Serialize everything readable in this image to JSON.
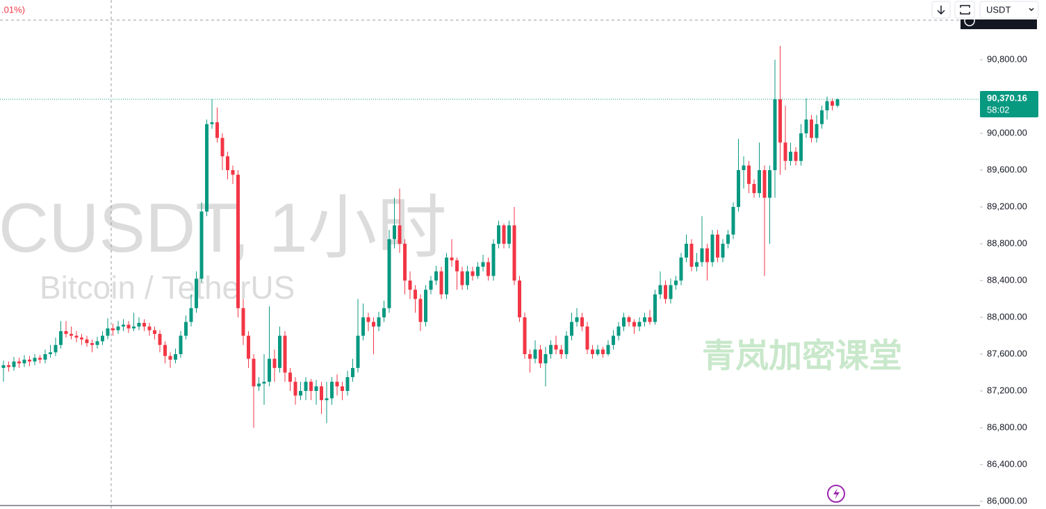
{
  "header_change": ".01%)",
  "toolbar": {
    "currency": "USDT"
  },
  "watermark": {
    "symbol": "CUSDT, 1小时",
    "name": "Bitcoin / TetherUS",
    "brand": "青岚加密课堂"
  },
  "chart_data": {
    "type": "candlestick",
    "up_color": "#089981",
    "down_color": "#f23645",
    "ylim": [
      85917,
      91449
    ],
    "yticks": [
      {
        "value": 86000,
        "label": "86,000.00"
      },
      {
        "value": 86400,
        "label": "86,400.00"
      },
      {
        "value": 86800,
        "label": "86,800.00"
      },
      {
        "value": 87200,
        "label": "87,200.00"
      },
      {
        "value": 87600,
        "label": "87,600.00"
      },
      {
        "value": 88000,
        "label": "88,000.00"
      },
      {
        "value": 88400,
        "label": "88,400.00"
      },
      {
        "value": 88800,
        "label": "88,800.00"
      },
      {
        "value": 89200,
        "label": "89,200.00"
      },
      {
        "value": 89600,
        "label": "89,600.00"
      },
      {
        "value": 90000,
        "label": "90,000.00"
      },
      {
        "value": 90800,
        "label": "90,800.00"
      }
    ],
    "last_price_label": "90,370.16",
    "countdown": "58:02",
    "open": [
      87450,
      87480,
      87460,
      87520,
      87500,
      87540,
      87520,
      87560,
      87540,
      87600,
      87620,
      87700,
      87850,
      87820,
      87800,
      87780,
      87760,
      87720,
      87700,
      87740,
      87800,
      87880,
      87860,
      87900,
      87920,
      87880,
      87900,
      87940,
      87900,
      87860,
      87820,
      87700,
      87580,
      87540,
      87600,
      87800,
      87950,
      88100,
      88420,
      89150,
      90100,
      90120,
      89950,
      89750,
      89600,
      89550,
      88100,
      87800,
      87550,
      87250,
      87280,
      87300,
      87550,
      87450,
      87800,
      87400,
      87300,
      87150,
      87200,
      87300,
      87200,
      87250,
      87100,
      87120,
      87300,
      87250,
      87200,
      87350,
      87450,
      87800,
      88000,
      87950,
      87900,
      88000,
      88100,
      88850,
      89000,
      88800,
      88400,
      88300,
      88200,
      87950,
      88300,
      88400,
      88500,
      88250,
      88650,
      88620,
      88500,
      88350,
      88500,
      88450,
      88550,
      88600,
      88450,
      88800,
      89000,
      88800,
      89000,
      88400,
      88000,
      87600,
      87550,
      87650,
      87500,
      87600,
      87700,
      87650,
      87600,
      87800,
      87950,
      88000,
      87900,
      87650,
      87600,
      87650,
      87600,
      87700,
      87800,
      87900,
      88000,
      87950,
      87900,
      87950,
      88000,
      87950,
      88250,
      88350,
      88200,
      88350,
      88400,
      88650,
      88800,
      88550,
      88600,
      88750,
      88600,
      88900,
      88650,
      88800,
      88900,
      89200,
      89600,
      89650,
      89450,
      89350,
      89600,
      89300,
      89600,
      90370,
      89900,
      89700,
      89800,
      89700,
      90000,
      90150,
      89950,
      90100,
      90250,
      90350,
      90300
    ],
    "high": [
      87530,
      87520,
      87570,
      87560,
      87590,
      87580,
      87600,
      87590,
      87650,
      87700,
      87780,
      87960,
      87960,
      87900,
      87850,
      87820,
      87800,
      87760,
      87790,
      87850,
      87990,
      87930,
      87960,
      87980,
      87960,
      88050,
      88000,
      87980,
      87940,
      87900,
      87860,
      87740,
      87620,
      87660,
      87850,
      88020,
      88250,
      88500,
      89250,
      90150,
      90370,
      90280,
      90000,
      89800,
      89650,
      89600,
      88200,
      87850,
      87600,
      87350,
      87600,
      88120,
      87650,
      87900,
      87850,
      87450,
      87350,
      87300,
      87350,
      87330,
      87320,
      87300,
      87300,
      87350,
      87380,
      87300,
      87420,
      87550,
      88200,
      88150,
      88050,
      88000,
      88060,
      88180,
      88950,
      89300,
      89400,
      88850,
      88500,
      88350,
      88250,
      88350,
      88450,
      88560,
      88550,
      88700,
      88850,
      88650,
      88550,
      88560,
      88550,
      88600,
      88680,
      88650,
      88850,
      89050,
      89020,
      89050,
      89200,
      88450,
      88050,
      87650,
      87750,
      87700,
      87680,
      87750,
      87800,
      87700,
      87850,
      88050,
      88100,
      88050,
      87950,
      87700,
      87700,
      87680,
      87750,
      87860,
      87950,
      88050,
      88020,
      87980,
      88000,
      88050,
      88080,
      88300,
      88500,
      88400,
      88420,
      88450,
      88700,
      88900,
      88850,
      88700,
      89100,
      88800,
      88950,
      88950,
      88850,
      88950,
      89250,
      89940,
      89750,
      89700,
      89500,
      89900,
      89650,
      89650,
      90800,
      90950,
      90300,
      89900,
      89850,
      90100,
      90380,
      90200,
      90200,
      90300,
      90400,
      90380,
      90380
    ],
    "low": [
      87300,
      87410,
      87420,
      87450,
      87460,
      87470,
      87480,
      87500,
      87500,
      87560,
      87580,
      87660,
      87780,
      87760,
      87730,
      87700,
      87680,
      87620,
      87660,
      87700,
      87760,
      87800,
      87820,
      87850,
      87830,
      87850,
      87860,
      87850,
      87800,
      87760,
      87620,
      87500,
      87450,
      87500,
      87560,
      87760,
      87900,
      88050,
      88380,
      89100,
      90050,
      89900,
      89600,
      89500,
      89450,
      88000,
      87700,
      87450,
      86800,
      87200,
      87050,
      87250,
      87300,
      87400,
      87300,
      87200,
      87050,
      87100,
      87100,
      87100,
      87050,
      86950,
      86850,
      87050,
      87150,
      87100,
      87150,
      87300,
      87400,
      87750,
      87850,
      87600,
      87850,
      87950,
      88050,
      88750,
      88700,
      88250,
      88200,
      88050,
      87850,
      87900,
      88250,
      88350,
      88200,
      88200,
      88550,
      88300,
      88300,
      88300,
      88400,
      88420,
      88500,
      88400,
      88400,
      88750,
      88750,
      88750,
      88350,
      87950,
      87550,
      87400,
      87500,
      87450,
      87250,
      87550,
      87600,
      87550,
      87550,
      87750,
      87900,
      87850,
      87600,
      87550,
      87580,
      87560,
      87580,
      87650,
      87750,
      87850,
      87900,
      87820,
      87850,
      87900,
      87920,
      87920,
      88200,
      88150,
      88150,
      88300,
      88350,
      88600,
      88500,
      88500,
      88550,
      88400,
      88550,
      88600,
      88600,
      88750,
      88850,
      89150,
      89400,
      89350,
      89300,
      89300,
      88450,
      88800,
      89300,
      89550,
      89600,
      89650,
      89650,
      89650,
      89950,
      89900,
      89900,
      90050,
      90150,
      90250,
      90280
    ],
    "close": [
      87480,
      87460,
      87520,
      87500,
      87540,
      87520,
      87560,
      87540,
      87600,
      87620,
      87700,
      87850,
      87820,
      87800,
      87780,
      87760,
      87720,
      87700,
      87740,
      87800,
      87880,
      87860,
      87900,
      87920,
      87880,
      87900,
      87940,
      87900,
      87860,
      87820,
      87700,
      87580,
      87540,
      87600,
      87800,
      87950,
      88100,
      88420,
      89150,
      90100,
      90120,
      89950,
      89750,
      89600,
      89550,
      88100,
      87800,
      87550,
      87250,
      87280,
      87300,
      87550,
      87450,
      87800,
      87400,
      87300,
      87150,
      87200,
      87300,
      87200,
      87250,
      87100,
      87120,
      87300,
      87250,
      87200,
      87350,
      87450,
      87800,
      88000,
      87950,
      87900,
      88000,
      88100,
      88850,
      89000,
      88800,
      88400,
      88300,
      88200,
      87950,
      88300,
      88400,
      88500,
      88250,
      88650,
      88620,
      88500,
      88350,
      88500,
      88450,
      88550,
      88600,
      88450,
      88800,
      89000,
      88800,
      89000,
      88400,
      88000,
      87600,
      87550,
      87650,
      87500,
      87600,
      87700,
      87650,
      87600,
      87800,
      87950,
      88000,
      87900,
      87650,
      87600,
      87650,
      87600,
      87700,
      87800,
      87900,
      88000,
      87950,
      87900,
      87950,
      88000,
      87950,
      88250,
      88350,
      88200,
      88350,
      88400,
      88650,
      88800,
      88550,
      88600,
      88750,
      88600,
      88900,
      88650,
      88800,
      88900,
      89200,
      89600,
      89650,
      89450,
      89350,
      89600,
      89300,
      89600,
      90370,
      89900,
      89700,
      89800,
      89700,
      90000,
      90150,
      89950,
      90100,
      90250,
      90350,
      90300,
      90370.16
    ]
  }
}
